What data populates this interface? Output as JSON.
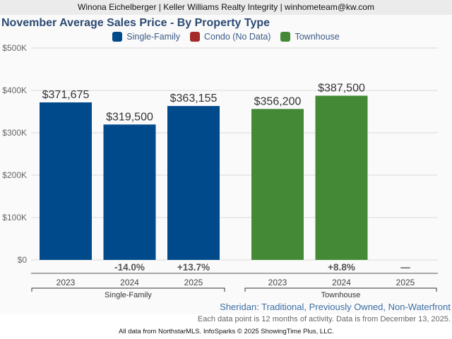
{
  "header": {
    "text": "Winona Eichelberger | Keller Williams Realty Integrity | winhometeam@kw.com"
  },
  "colors": {
    "single_family": "#004a8c",
    "condo": "#a52a2a",
    "townhouse": "#448a36",
    "title": "#2b4a72"
  },
  "chart_data": {
    "type": "bar",
    "title": "November Average Sales Price - By Property Type",
    "legend": [
      {
        "name": "Single-Family",
        "color": "#004a8c"
      },
      {
        "name": "Condo (No Data)",
        "color": "#a52a2a"
      },
      {
        "name": "Townhouse",
        "color": "#448a36"
      }
    ],
    "legend_position": "top-center",
    "ylim": [
      0,
      500000
    ],
    "yticks": [
      {
        "value": 0,
        "label": "$0"
      },
      {
        "value": 100000,
        "label": "$100K"
      },
      {
        "value": 200000,
        "label": "$200K"
      },
      {
        "value": 300000,
        "label": "$300K"
      },
      {
        "value": 400000,
        "label": "$400K"
      },
      {
        "value": 500000,
        "label": "$500K"
      }
    ],
    "grid": true,
    "groups": [
      {
        "name": "Single-Family",
        "color": "#004a8c",
        "bars": [
          {
            "year": "2023",
            "value": 371675,
            "label": "$371,675",
            "change": ""
          },
          {
            "year": "2024",
            "value": 319500,
            "label": "$319,500",
            "change": "-14.0%"
          },
          {
            "year": "2025",
            "value": 363155,
            "label": "$363,155",
            "change": "+13.7%"
          }
        ]
      },
      {
        "name": "Townhouse",
        "color": "#448a36",
        "bars": [
          {
            "year": "2023",
            "value": 356200,
            "label": "$356,200",
            "change": ""
          },
          {
            "year": "2024",
            "value": 387500,
            "label": "$387,500",
            "change": "+8.8%"
          },
          {
            "year": "2025",
            "value": null,
            "label": "",
            "change": "—"
          }
        ]
      }
    ]
  },
  "footer": {
    "subtitle": "Sheridan: Traditional, Previously Owned, Non-Waterfront",
    "note": "Each data point is 12 months of activity. Data is from December 13, 2025.",
    "credits": "All data from NorthstarMLS. InfoSparks © 2025 ShowingTime Plus, LLC."
  }
}
